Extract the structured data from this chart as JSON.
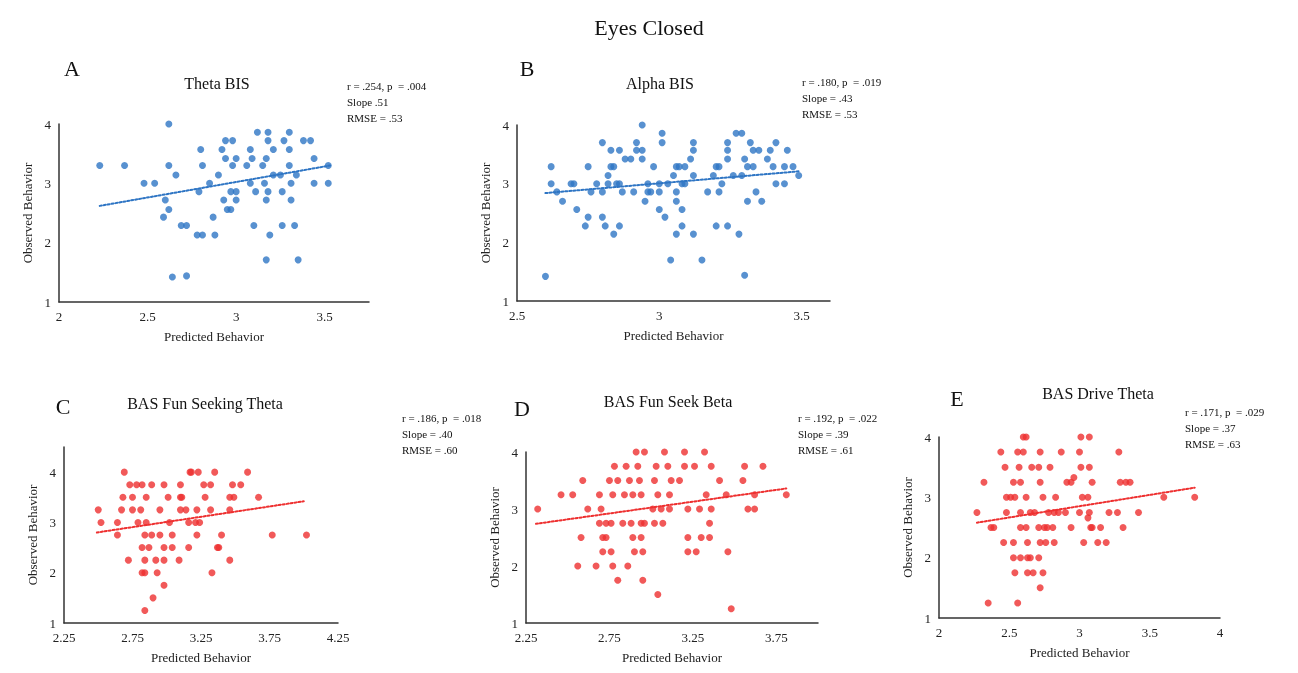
{
  "chart_data": [
    {
      "type": "scatter",
      "title": "Theta BIS",
      "xlabel": "Predicted Behavior",
      "ylabel": "Observed Behavior",
      "xlim": [
        2,
        3.75
      ],
      "xticks": [
        2,
        2.5,
        3,
        3.5
      ],
      "ylim": [
        1,
        4
      ],
      "yticks": [
        1,
        2,
        3,
        4
      ],
      "marker": "circle",
      "annotations": [
        "Eyes Closed",
        "A",
        "r = .254, p  = .004",
        "Slope .51",
        "RMSE = .53"
      ],
      "series": [
        {
          "type": "scatter",
          "color": "#2e75c4",
          "x": [
            2.23,
            2.37,
            2.48,
            2.54,
            2.62,
            2.62,
            2.66,
            2.6,
            2.62,
            2.59,
            2.64,
            2.72,
            2.69,
            2.72,
            2.78,
            2.81,
            2.79,
            2.8,
            2.81,
            2.85,
            2.87,
            2.88,
            2.9,
            2.92,
            2.94,
            2.98,
            2.94,
            2.93,
            2.95,
            2.97,
            2.97,
            3.0,
            3.0,
            3.0,
            2.98,
            3.06,
            3.08,
            3.09,
            3.08,
            3.1,
            3.11,
            3.12,
            3.15,
            3.16,
            3.17,
            3.17,
            3.18,
            3.18,
            3.17,
            3.19,
            3.18,
            3.21,
            3.21,
            3.25,
            3.26,
            3.26,
            3.27,
            3.3,
            3.3,
            3.3,
            3.31,
            3.31,
            3.33,
            3.35,
            3.34,
            3.38,
            3.42,
            3.44,
            3.44,
            3.52,
            3.52
          ],
          "values": [
            3.3,
            3.3,
            3.0,
            3.0,
            4.0,
            3.3,
            3.14,
            2.72,
            2.56,
            2.43,
            1.42,
            1.44,
            2.29,
            2.29,
            2.13,
            2.13,
            2.86,
            3.57,
            3.3,
            3.0,
            2.43,
            2.13,
            3.14,
            3.57,
            3.72,
            3.72,
            3.42,
            2.72,
            2.56,
            2.56,
            2.86,
            2.86,
            2.72,
            3.42,
            3.3,
            3.3,
            3.57,
            3.42,
            3.0,
            2.29,
            2.86,
            3.86,
            3.3,
            3.0,
            1.71,
            3.42,
            3.86,
            3.72,
            2.72,
            2.13,
            2.86,
            3.57,
            3.14,
            3.14,
            2.86,
            2.29,
            3.72,
            3.86,
            3.57,
            3.3,
            3.0,
            2.72,
            2.29,
            1.71,
            3.14,
            3.72,
            3.72,
            3.42,
            3.0,
            3.3,
            3.0
          ]
        },
        {
          "type": "line",
          "color": "#2e75c4",
          "marker": "none",
          "line_style": "dotted",
          "x": [
            2.23,
            3.53
          ],
          "values": [
            2.62,
            3.3
          ]
        }
      ]
    },
    {
      "type": "scatter",
      "title": "Alpha BIS",
      "xlabel": "Predicted Behavior",
      "ylabel": "Observed Behavior",
      "xlim": [
        2.5,
        3.6
      ],
      "xticks": [
        2.5,
        3,
        3.5
      ],
      "ylim": [
        1,
        4
      ],
      "yticks": [
        1,
        2,
        3,
        4
      ],
      "marker": "circle",
      "annotations": [
        "B",
        "r = .180, p  = .019",
        "Slope = .43",
        "RMSE = .53"
      ],
      "series": [
        {
          "type": "scatter",
          "color": "#2e75c4",
          "x": [
            2.6,
            2.62,
            2.62,
            2.64,
            2.66,
            2.69,
            2.7,
            2.71,
            2.74,
            2.75,
            2.75,
            2.76,
            2.78,
            2.8,
            2.8,
            2.8,
            2.81,
            2.82,
            2.82,
            2.83,
            2.83,
            2.84,
            2.84,
            2.85,
            2.86,
            2.86,
            2.86,
            2.87,
            2.88,
            2.9,
            2.91,
            2.92,
            2.92,
            2.94,
            2.94,
            2.94,
            2.95,
            2.96,
            2.97,
            2.96,
            2.98,
            3.0,
            3.0,
            3.0,
            3.01,
            3.01,
            3.02,
            3.04,
            3.03,
            3.05,
            3.06,
            3.07,
            3.06,
            3.06,
            3.06,
            3.08,
            3.08,
            3.08,
            3.09,
            3.09,
            3.11,
            3.12,
            3.12,
            3.12,
            3.12,
            3.15,
            3.17,
            3.19,
            3.2,
            3.21,
            3.2,
            3.21,
            3.22,
            3.24,
            3.24,
            3.24,
            3.24,
            3.26,
            3.27,
            3.29,
            3.28,
            3.3,
            3.29,
            3.3,
            3.31,
            3.31,
            3.33,
            3.32,
            3.33,
            3.35,
            3.34,
            3.36,
            3.38,
            3.39,
            3.4,
            3.41,
            3.41,
            3.44,
            3.44,
            3.47,
            3.45,
            3.49
          ],
          "values": [
            1.42,
            3.29,
            3.0,
            2.86,
            2.7,
            3.0,
            3.0,
            2.56,
            2.28,
            3.29,
            2.43,
            2.86,
            3.0,
            3.7,
            2.86,
            2.43,
            2.28,
            3.14,
            3.0,
            3.57,
            3.29,
            3.29,
            2.14,
            3.0,
            3.0,
            3.57,
            2.28,
            2.86,
            3.42,
            3.42,
            2.86,
            3.7,
            3.57,
            3.57,
            3.42,
            4.0,
            2.7,
            2.86,
            2.86,
            3.0,
            3.29,
            2.56,
            2.86,
            3.0,
            3.86,
            3.7,
            2.43,
            1.7,
            3.0,
            3.14,
            3.29,
            3.29,
            2.86,
            2.7,
            2.14,
            2.56,
            2.28,
            3.0,
            3.0,
            3.29,
            3.42,
            2.14,
            3.7,
            3.57,
            3.14,
            1.7,
            2.86,
            3.14,
            3.29,
            3.29,
            2.28,
            2.86,
            3.0,
            2.28,
            3.7,
            3.57,
            3.42,
            3.14,
            3.86,
            3.86,
            2.14,
            3.42,
            3.14,
            1.44,
            2.7,
            3.29,
            3.29,
            3.7,
            3.57,
            3.57,
            2.86,
            2.7,
            3.42,
            3.57,
            3.29,
            3.7,
            3.0,
            3.0,
            3.29,
            3.29,
            3.57,
            3.14
          ]
        },
        {
          "type": "line",
          "color": "#2e75c4",
          "marker": "none",
          "line_style": "dotted",
          "x": [
            2.6,
            3.49
          ],
          "values": [
            2.84,
            3.21
          ]
        }
      ]
    },
    {
      "type": "scatter",
      "title": "BAS Fun Seeking Theta",
      "xlabel": "Predicted Behavior",
      "ylabel": "Observed Behavior",
      "xlim": [
        2.25,
        4.25
      ],
      "xticks": [
        2.25,
        2.75,
        3.25,
        3.75,
        4.25
      ],
      "ylim": [
        1,
        4.5
      ],
      "yticks": [
        1,
        2,
        3,
        4
      ],
      "marker": "circle",
      "annotations": [
        "C",
        "r = .186, p  = .018",
        "Slope = .40",
        "RMSE = .60"
      ],
      "series": [
        {
          "type": "scatter",
          "color": "#ee3030",
          "x": [
            2.5,
            2.52,
            2.64,
            2.64,
            2.67,
            2.69,
            2.68,
            2.72,
            2.73,
            2.78,
            2.82,
            2.75,
            2.75,
            2.81,
            2.79,
            2.85,
            2.82,
            2.87,
            2.82,
            2.84,
            2.84,
            2.89,
            2.84,
            2.84,
            2.85,
            2.89,
            2.9,
            2.92,
            2.93,
            2.95,
            2.95,
            2.98,
            2.98,
            2.98,
            2.98,
            3.01,
            3.02,
            3.04,
            3.04,
            3.09,
            3.1,
            3.1,
            3.14,
            3.1,
            3.11,
            3.16,
            3.16,
            3.17,
            3.18,
            3.23,
            3.27,
            3.21,
            3.22,
            3.22,
            3.24,
            3.28,
            3.32,
            3.32,
            3.33,
            3.35,
            3.37,
            3.38,
            3.4,
            3.46,
            3.46,
            3.46,
            3.48,
            3.49,
            3.54,
            3.59,
            3.67,
            3.77,
            4.02
          ],
          "values": [
            3.25,
            3.0,
            2.75,
            3.0,
            3.25,
            4.0,
            3.5,
            2.25,
            3.75,
            3.75,
            3.75,
            3.5,
            3.25,
            3.25,
            3.0,
            3.0,
            2.5,
            2.5,
            2.0,
            2.0,
            2.75,
            2.75,
            2.25,
            1.25,
            3.5,
            3.75,
            1.5,
            2.25,
            2.0,
            3.25,
            2.75,
            1.75,
            2.5,
            2.25,
            3.75,
            3.5,
            3.0,
            2.75,
            2.5,
            2.25,
            3.75,
            3.25,
            3.25,
            3.5,
            3.5,
            3.0,
            2.5,
            4.0,
            4.0,
            4.0,
            3.75,
            3.0,
            3.25,
            2.75,
            3.0,
            3.5,
            3.25,
            3.75,
            2.0,
            4.0,
            2.5,
            2.5,
            2.75,
            3.25,
            3.5,
            2.25,
            3.75,
            3.5,
            3.75,
            4.0,
            3.5,
            2.75,
            2.75
          ]
        },
        {
          "type": "line",
          "color": "#ee3030",
          "marker": "none",
          "line_style": "dotted",
          "x": [
            2.49,
            4.0
          ],
          "values": [
            2.8,
            3.42
          ]
        }
      ]
    },
    {
      "type": "scatter",
      "title": "BAS Fun Seek Beta",
      "xlabel": "Predicted Behavior",
      "ylabel": "Observed Behavior",
      "xlim": [
        2.25,
        4
      ],
      "xticks": [
        2.25,
        2.75,
        3.25,
        3.75
      ],
      "ylim": [
        1,
        4
      ],
      "yticks": [
        1,
        2,
        3,
        4
      ],
      "marker": "circle",
      "annotations": [
        "D",
        "r = .192, p  = .022",
        "Slope = .39",
        "RMSE = .61"
      ],
      "series": [
        {
          "type": "scatter",
          "color": "#ee3030",
          "x": [
            2.32,
            2.46,
            2.53,
            2.58,
            2.56,
            2.59,
            2.62,
            2.67,
            2.69,
            2.69,
            2.73,
            2.76,
            2.7,
            2.71,
            2.73,
            2.71,
            2.76,
            2.75,
            2.8,
            2.77,
            2.78,
            2.77,
            2.8,
            2.83,
            2.88,
            2.84,
            2.89,
            2.85,
            2.86,
            2.87,
            2.89,
            2.9,
            2.91,
            2.96,
            2.92,
            2.93,
            2.94,
            2.96,
            2.94,
            2.94,
            2.95,
            2.95,
            3.02,
            3.01,
            3.06,
            3.02,
            3.07,
            3.03,
            3.04,
            3.04,
            3.08,
            3.1,
            3.12,
            3.11,
            3.11,
            3.17,
            3.2,
            3.2,
            3.22,
            3.22,
            3.22,
            3.27,
            3.26,
            3.29,
            3.3,
            3.32,
            3.33,
            3.35,
            3.35,
            3.36,
            3.36,
            3.41,
            3.45,
            3.46,
            3.48,
            3.55,
            3.56,
            3.58,
            3.62,
            3.62,
            3.67,
            3.81
          ],
          "values": [
            3.0,
            3.25,
            3.25,
            2.5,
            2.0,
            3.5,
            3.0,
            2.0,
            3.25,
            2.75,
            2.75,
            2.75,
            3.0,
            2.5,
            2.5,
            2.25,
            2.25,
            3.5,
            3.5,
            3.25,
            3.75,
            2.0,
            1.75,
            2.75,
            2.75,
            3.25,
            3.25,
            3.75,
            2.0,
            3.5,
            2.5,
            2.25,
            4.0,
            4.0,
            3.75,
            3.5,
            2.75,
            2.75,
            3.25,
            2.5,
            2.25,
            1.75,
            3.5,
            3.0,
            3.0,
            2.75,
            2.75,
            3.75,
            3.25,
            1.5,
            4.0,
            3.75,
            3.5,
            3.25,
            3.0,
            3.5,
            4.0,
            3.75,
            3.0,
            2.5,
            2.25,
            2.25,
            3.75,
            3.0,
            2.5,
            4.0,
            3.25,
            2.5,
            2.75,
            3.0,
            3.75,
            3.5,
            3.25,
            2.25,
            1.25,
            3.5,
            3.75,
            3.0,
            3.0,
            3.25,
            3.75,
            3.25
          ]
        },
        {
          "type": "line",
          "color": "#ee3030",
          "marker": "none",
          "line_style": "dotted",
          "x": [
            2.31,
            3.81
          ],
          "values": [
            2.74,
            3.36
          ]
        }
      ]
    },
    {
      "type": "scatter",
      "title": "BAS Drive Theta",
      "xlabel": "Predicted Behavior",
      "ylabel": "Observed Behavior",
      "xlim": [
        2,
        4
      ],
      "xticks": [
        2,
        2.5,
        3,
        3.5,
        4
      ],
      "ylim": [
        1,
        4
      ],
      "yticks": [
        1,
        2,
        3,
        4
      ],
      "marker": "circle",
      "annotations": [
        "E",
        "r = .171, p  = .029",
        "Slope = .37",
        "RMSE = .63"
      ],
      "series": [
        {
          "type": "scatter",
          "color": "#ee3030",
          "x": [
            2.27,
            2.32,
            2.35,
            2.37,
            2.39,
            2.44,
            2.46,
            2.47,
            2.48,
            2.48,
            2.51,
            2.54,
            2.53,
            2.53,
            2.58,
            2.53,
            2.58,
            2.54,
            2.56,
            2.6,
            2.57,
            2.56,
            2.58,
            2.62,
            2.58,
            2.6,
            2.62,
            2.62,
            2.63,
            2.65,
            2.63,
            2.63,
            2.67,
            2.66,
            2.65,
            2.68,
            2.71,
            2.79,
            2.71,
            2.72,
            2.71,
            2.75,
            2.72,
            2.76,
            2.82,
            2.72,
            2.74,
            2.74,
            2.77,
            2.81,
            2.78,
            2.82,
            2.85,
            2.72,
            2.83,
            2.87,
            2.9,
            2.91,
            2.94,
            2.94,
            2.96,
            3.0,
            3.01,
            3.07,
            3.01,
            3.07,
            3.02,
            3.06,
            3.0,
            3.07,
            3.03,
            3.06,
            3.08,
            3.09,
            3.09,
            3.15,
            3.13,
            3.19,
            3.21,
            3.27,
            3.28,
            3.29,
            3.33,
            3.36,
            3.31,
            3.42,
            3.6,
            3.82
          ],
          "values": [
            2.75,
            3.25,
            1.25,
            2.5,
            2.5,
            3.75,
            2.25,
            3.5,
            2.75,
            3.0,
            3.0,
            3.0,
            2.25,
            2.0,
            2.0,
            3.25,
            3.25,
            1.75,
            3.75,
            3.75,
            3.5,
            1.25,
            2.5,
            2.5,
            2.75,
            4.0,
            4.0,
            3.0,
            2.0,
            2.0,
            2.25,
            1.75,
            1.75,
            3.5,
            2.75,
            2.75,
            3.5,
            3.5,
            2.0,
            3.25,
            2.5,
            2.5,
            2.25,
            2.25,
            2.25,
            1.5,
            1.75,
            3.0,
            2.5,
            2.5,
            2.75,
            2.75,
            2.75,
            3.75,
            3.0,
            3.75,
            2.75,
            3.25,
            3.25,
            2.5,
            3.33,
            3.75,
            4.0,
            4.0,
            3.5,
            3.5,
            3.0,
            3.0,
            2.75,
            2.75,
            2.25,
            2.66,
            2.5,
            2.5,
            3.25,
            2.5,
            2.25,
            2.25,
            2.75,
            2.75,
            3.75,
            3.25,
            3.25,
            3.25,
            2.5,
            2.75,
            3.0,
            3.0
          ]
        },
        {
          "type": "line",
          "color": "#ee3030",
          "marker": "none",
          "line_style": "dotted",
          "x": [
            2.27,
            3.82
          ],
          "values": [
            2.58,
            3.16
          ]
        }
      ]
    }
  ]
}
